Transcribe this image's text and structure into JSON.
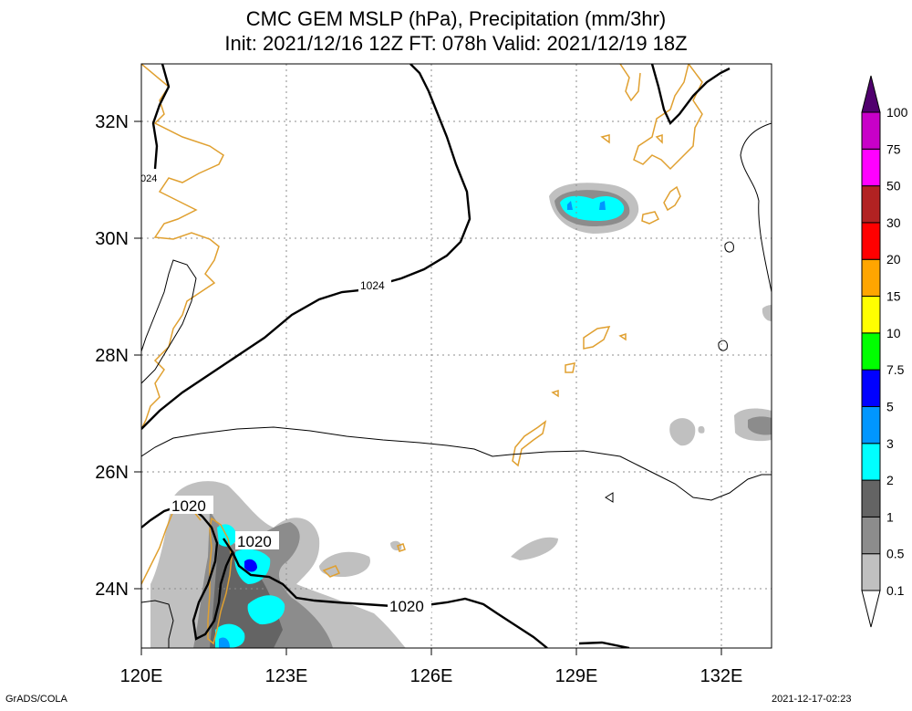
{
  "title": {
    "line1": "CMC GEM MSLP (hPa), Precipitation (mm/3hr)",
    "line2": "Init: 2021/12/16 12Z  FT: 078h  Valid: 2021/12/19 18Z"
  },
  "axes": {
    "lon_labels": [
      "120E",
      "123E",
      "126E",
      "129E",
      "132E"
    ],
    "lat_labels": [
      "32N",
      "30N",
      "28N",
      "26N",
      "24N"
    ]
  },
  "contour_labels": {
    "c1024_left": "024",
    "c1024_mid": "1024",
    "c1020_a": "1020",
    "c1020_b": "1020",
    "c1020_c": "1020"
  },
  "colorbar": {
    "levels": [
      "0.1",
      "0.5",
      "1",
      "2",
      "3",
      "5",
      "7.5",
      "10",
      "15",
      "20",
      "30",
      "50",
      "75",
      "100"
    ],
    "colors": [
      "#c0c0c0",
      "#8c8c8c",
      "#646464",
      "#00ffff",
      "#0096ff",
      "#0000ff",
      "#00ff00",
      "#ffff00",
      "#ffa500",
      "#ff0000",
      "#b22222",
      "#ff00ff",
      "#c800c8",
      "#8a00aa",
      "#50006e"
    ]
  },
  "footer": {
    "left": "GrADS/COLA",
    "right": "2021-12-17-02:23"
  }
}
